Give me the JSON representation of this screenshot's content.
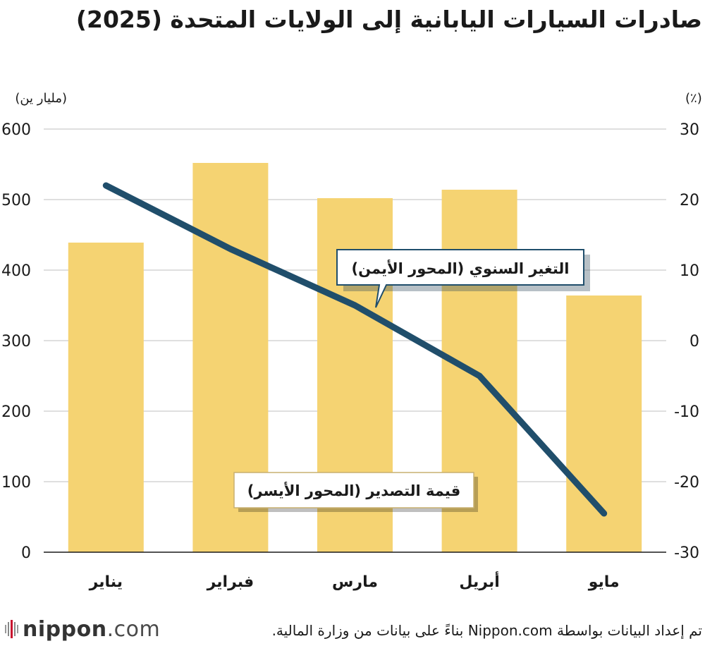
{
  "title": "صادرات السيارات اليابانية إلى الولايات المتحدة (2025)",
  "source": "تم إعداد البيانات بواسطة Nippon.com بناءً على بيانات من وزارة المالية.",
  "logo": {
    "text_bold": "nippon",
    "text_light": ".com"
  },
  "colors": {
    "bar": "#f5d372",
    "line": "#204e6b",
    "grid": "#cccccc",
    "axis": "#1a1a1a"
  },
  "chart_data": {
    "type": "bar+line",
    "categories": [
      "يناير",
      "فبراير",
      "مارس",
      "أبريل",
      "مايو"
    ],
    "series": [
      {
        "name": "قيمة التصدير (المحور الأيسر)",
        "type": "bar",
        "axis": "left",
        "values": [
          439,
          552,
          502,
          514,
          364
        ]
      },
      {
        "name": "التغير السنوي (المحور الأيمن)",
        "type": "line",
        "axis": "right",
        "values": [
          22,
          13,
          5,
          -5,
          -24.5
        ]
      }
    ],
    "left_axis": {
      "label": "(مليار ين)",
      "range": [
        0,
        600
      ],
      "ticks": [
        "0",
        "100",
        "200",
        "300",
        "400",
        "500",
        "600"
      ]
    },
    "right_axis": {
      "label": "(٪)",
      "range": [
        -30,
        30
      ],
      "ticks": [
        "-30",
        "-20",
        "-10",
        "0",
        "10",
        "20",
        "30"
      ]
    },
    "annotations": [
      {
        "text": "التغير السنوي (المحور الأيمن)",
        "target": "line"
      },
      {
        "text": "قيمة التصدير (المحور الأيسر)",
        "target": "bar"
      }
    ]
  }
}
